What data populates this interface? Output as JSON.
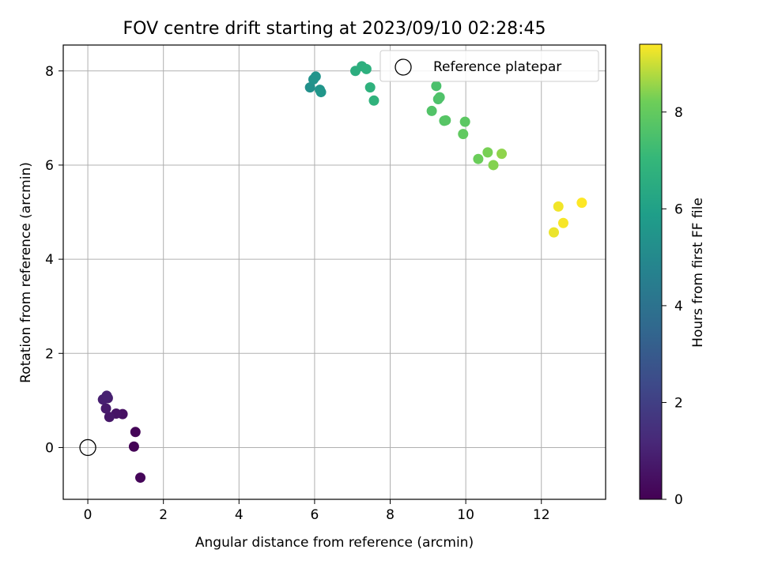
{
  "chart_data": {
    "type": "scatter",
    "title": "FOV centre drift starting at 2023/09/10 02:28:45",
    "xlabel": "Angular distance from reference (arcmin)",
    "ylabel": "Rotation from reference (arcmin)",
    "xlim": [
      -0.65,
      13.7
    ],
    "ylim": [
      -1.1,
      8.55
    ],
    "xticks": [
      0,
      2,
      4,
      6,
      8,
      10,
      12
    ],
    "yticks": [
      0,
      2,
      4,
      6,
      8
    ],
    "grid": true,
    "legend": {
      "position": "top-right",
      "entries": [
        {
          "label": "Reference platepar",
          "marker": "open-circle",
          "x": 0,
          "y": 0
        }
      ]
    },
    "colorbar": {
      "label": "Hours from first FF file",
      "colormap": "viridis",
      "range": [
        0,
        9.4
      ],
      "ticks": [
        0,
        2,
        4,
        6,
        8
      ]
    },
    "points": [
      {
        "x": 1.22,
        "y": 0.02,
        "hours": 0.05
      },
      {
        "x": 1.26,
        "y": 0.33,
        "hours": 0.1
      },
      {
        "x": 1.39,
        "y": -0.64,
        "hours": 0.15
      },
      {
        "x": 0.92,
        "y": 0.71,
        "hours": 0.45
      },
      {
        "x": 0.75,
        "y": 0.72,
        "hours": 0.55
      },
      {
        "x": 0.57,
        "y": 0.65,
        "hours": 0.65
      },
      {
        "x": 0.48,
        "y": 0.83,
        "hours": 0.75
      },
      {
        "x": 0.53,
        "y": 1.05,
        "hours": 0.85
      },
      {
        "x": 0.4,
        "y": 1.02,
        "hours": 0.9
      },
      {
        "x": 0.5,
        "y": 1.1,
        "hours": 0.95
      },
      {
        "x": 5.88,
        "y": 7.65,
        "hours": 5.3
      },
      {
        "x": 5.97,
        "y": 7.82,
        "hours": 5.4
      },
      {
        "x": 6.03,
        "y": 7.88,
        "hours": 5.45
      },
      {
        "x": 6.14,
        "y": 7.6,
        "hours": 5.5
      },
      {
        "x": 6.17,
        "y": 7.55,
        "hours": 5.55
      },
      {
        "x": 7.08,
        "y": 8.0,
        "hours": 6.6
      },
      {
        "x": 7.25,
        "y": 8.1,
        "hours": 6.65
      },
      {
        "x": 7.37,
        "y": 8.04,
        "hours": 6.7
      },
      {
        "x": 7.47,
        "y": 7.65,
        "hours": 6.75
      },
      {
        "x": 7.57,
        "y": 7.37,
        "hours": 6.8
      },
      {
        "x": 9.22,
        "y": 7.68,
        "hours": 7.5
      },
      {
        "x": 9.27,
        "y": 7.4,
        "hours": 7.55
      },
      {
        "x": 9.31,
        "y": 7.44,
        "hours": 7.6
      },
      {
        "x": 9.1,
        "y": 7.15,
        "hours": 7.65
      },
      {
        "x": 9.43,
        "y": 6.94,
        "hours": 7.7
      },
      {
        "x": 9.47,
        "y": 6.95,
        "hours": 7.75
      },
      {
        "x": 9.98,
        "y": 6.92,
        "hours": 7.85
      },
      {
        "x": 9.93,
        "y": 6.66,
        "hours": 7.95
      },
      {
        "x": 10.33,
        "y": 6.13,
        "hours": 8.15
      },
      {
        "x": 10.58,
        "y": 6.27,
        "hours": 8.3
      },
      {
        "x": 10.73,
        "y": 6.0,
        "hours": 8.4
      },
      {
        "x": 10.95,
        "y": 6.24,
        "hours": 8.5
      },
      {
        "x": 12.33,
        "y": 4.57,
        "hours": 9.25
      },
      {
        "x": 12.45,
        "y": 5.12,
        "hours": 9.3
      },
      {
        "x": 12.58,
        "y": 4.77,
        "hours": 9.35
      },
      {
        "x": 13.07,
        "y": 5.2,
        "hours": 9.4
      }
    ]
  }
}
